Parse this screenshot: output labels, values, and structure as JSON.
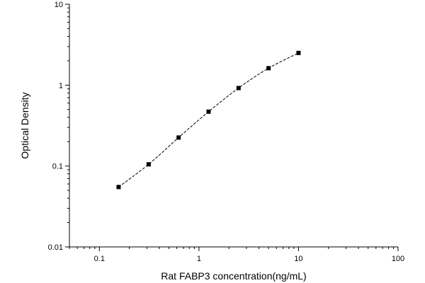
{
  "chart_data": {
    "type": "scatter",
    "title": "",
    "xlabel": "Rat FABP3 concentration(ng/mL)",
    "ylabel": "Optical Density",
    "x_scale": "log",
    "y_scale": "log",
    "xlim": [
      0.05,
      100
    ],
    "ylim": [
      0.01,
      10
    ],
    "x_ticks": [
      0.1,
      1,
      10,
      100
    ],
    "x_tick_labels": [
      "0.1",
      "1",
      "10",
      "100"
    ],
    "y_ticks": [
      0.01,
      0.1,
      1,
      10
    ],
    "y_tick_labels": [
      "0.01",
      "0.1",
      "1",
      "10"
    ],
    "grid": false,
    "series": [
      {
        "x": [
          0.156,
          0.3125,
          0.625,
          1.25,
          2.5,
          5,
          10
        ],
        "y": [
          0.055,
          0.105,
          0.225,
          0.47,
          0.92,
          1.62,
          2.5
        ]
      }
    ],
    "fit_line": "dashed"
  }
}
